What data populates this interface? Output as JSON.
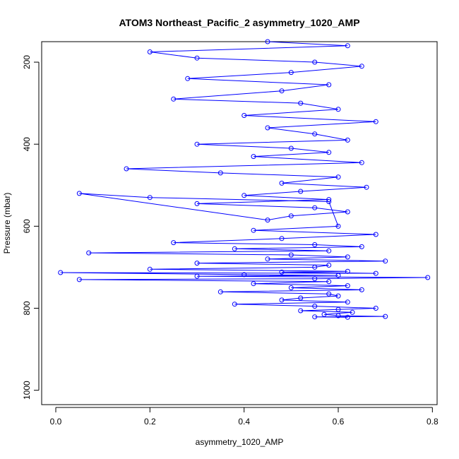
{
  "chart_data": {
    "type": "scatter",
    "title": "ATOM3 Northeast_Pacific_2 asymmetry_1020_AMP",
    "xlabel": "asymmetry_1020_AMP",
    "ylabel": "Pressure (mbar)",
    "xlim": [
      -0.03,
      0.81
    ],
    "ylim": [
      1035,
      150
    ],
    "y_inverted": true,
    "x_ticks": [
      0.0,
      0.2,
      0.4,
      0.6,
      0.8
    ],
    "x_tick_labels": [
      "0.0",
      "0.2",
      "0.4",
      "0.6",
      "0.8"
    ],
    "y_ticks": [
      200,
      400,
      600,
      800,
      1000
    ],
    "y_tick_labels": [
      "200",
      "400",
      "600",
      "800",
      "1000"
    ],
    "grid": false,
    "legend": "none",
    "marker": "open-circle",
    "connect_points": true,
    "color": "#0000ff",
    "series": [
      {
        "x": [
          0.45,
          0.62,
          0.2,
          0.3,
          0.55,
          0.65,
          0.5,
          0.28,
          0.58,
          0.48,
          0.25,
          0.52,
          0.6,
          0.4,
          0.68,
          0.45,
          0.55,
          0.62,
          0.3,
          0.5,
          0.58,
          0.42,
          0.65,
          0.15,
          0.35,
          0.6,
          0.48,
          0.66,
          0.52,
          0.4,
          0.58,
          0.3,
          0.55,
          0.62,
          0.5,
          0.45,
          0.05,
          0.2,
          0.58,
          0.6,
          0.42,
          0.68,
          0.48,
          0.25,
          0.55,
          0.65,
          0.38,
          0.58,
          0.07,
          0.5,
          0.62,
          0.45,
          0.7,
          0.3,
          0.58,
          0.55,
          0.2,
          0.62,
          0.48,
          0.68,
          0.01,
          0.4,
          0.6,
          0.3,
          0.79,
          0.55,
          0.05,
          0.58,
          0.42,
          0.62,
          0.5,
          0.65,
          0.35,
          0.58,
          0.6,
          0.52,
          0.48,
          0.62,
          0.38,
          0.55,
          0.68,
          0.6,
          0.52,
          0.63,
          0.57,
          0.6,
          0.7,
          0.55,
          0.62
        ],
        "y": [
          150,
          160,
          175,
          190,
          200,
          210,
          225,
          240,
          255,
          270,
          290,
          300,
          315,
          330,
          345,
          360,
          375,
          390,
          400,
          410,
          420,
          430,
          445,
          460,
          470,
          480,
          495,
          505,
          515,
          525,
          535,
          545,
          555,
          565,
          575,
          585,
          520,
          530,
          540,
          600,
          610,
          620,
          630,
          640,
          645,
          650,
          655,
          660,
          665,
          670,
          675,
          680,
          685,
          690,
          695,
          700,
          705,
          710,
          712,
          715,
          713,
          718,
          720,
          722,
          725,
          728,
          730,
          735,
          740,
          745,
          750,
          755,
          760,
          765,
          770,
          775,
          780,
          785,
          790,
          795,
          800,
          803,
          806,
          810,
          815,
          818,
          820,
          821,
          822
        ]
      }
    ]
  }
}
